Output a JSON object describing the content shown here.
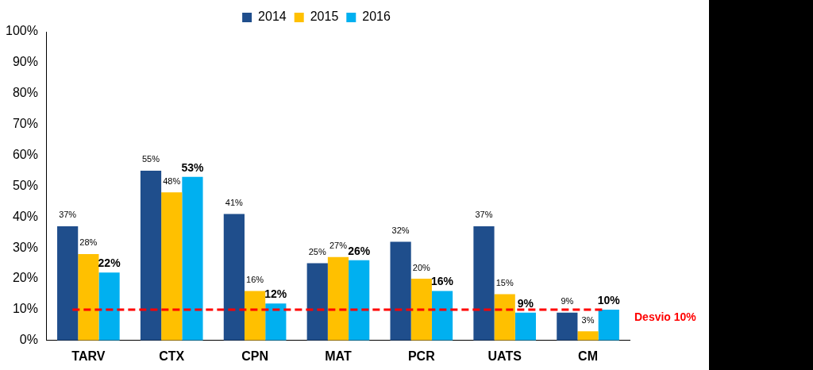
{
  "chart_data": {
    "type": "bar",
    "categories": [
      "TARV",
      "CTX",
      "CPN",
      "MAT",
      "PCR",
      "UATS",
      "CM"
    ],
    "series": [
      {
        "name": "2014",
        "color": "#1F4E8C",
        "values": [
          37,
          55,
          41,
          25,
          32,
          37,
          9
        ],
        "value_labels": [
          "37%",
          "55%",
          "41%",
          "25%",
          "32%",
          "37%",
          "9%"
        ]
      },
      {
        "name": "2015",
        "color": "#FFC000",
        "values": [
          28,
          48,
          16,
          27,
          20,
          15,
          3
        ],
        "value_labels": [
          "28%",
          "48%",
          "16%",
          "27%",
          "20%",
          "15%",
          "3%"
        ]
      },
      {
        "name": "2016",
        "color": "#00B0F0",
        "values": [
          22,
          53,
          12,
          26,
          16,
          9,
          10
        ],
        "value_labels": [
          "22%",
          "53%",
          "12%",
          "26%",
          "16%",
          "9%",
          "10%"
        ]
      }
    ],
    "ylim": [
      0,
      100
    ],
    "yticks": [
      {
        "value": 0,
        "label": "0%"
      },
      {
        "value": 10,
        "label": "10%"
      },
      {
        "value": 20,
        "label": "20%"
      },
      {
        "value": 30,
        "label": "30%"
      },
      {
        "value": 40,
        "label": "40%"
      },
      {
        "value": 50,
        "label": "50%"
      },
      {
        "value": 60,
        "label": "60%"
      },
      {
        "value": 70,
        "label": "70%"
      },
      {
        "value": 80,
        "label": "80%"
      },
      {
        "value": 90,
        "label": "90%"
      },
      {
        "value": 100,
        "label": "100%"
      }
    ],
    "grid": false,
    "legend": "top",
    "data_labels": true,
    "annotations": [
      {
        "type": "hline",
        "value": 10,
        "label": "Desvio 10%",
        "color": "#FF0000",
        "line_style": "dashed"
      }
    ]
  }
}
